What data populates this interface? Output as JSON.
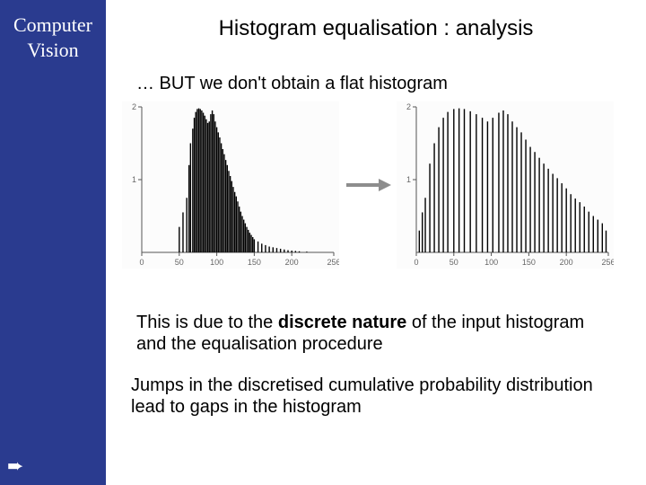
{
  "sidebar": {
    "line1": "Computer",
    "line2": "Vision",
    "bg_color": "#2a3b8f",
    "text_color": "#ffffff"
  },
  "title": "Histogram equalisation  : analysis",
  "subhead": "… BUT we don't obtain a flat histogram",
  "para1_pre": "This is due to the ",
  "para1_bold": "discrete nature",
  "para1_post": " of the input histogram and the equalisation procedure",
  "para2": "Jumps in the discretised cumulative probability distribution lead to gaps in the histogram",
  "chart_style": {
    "bar_color": "#000000",
    "axis_color": "#555555",
    "tick_label_color": "#777777",
    "background": "#fcfcfc",
    "font_size_pt": 9,
    "xlim": [
      0,
      256
    ],
    "ylim": [
      0,
      2
    ],
    "xticks": [
      0,
      50,
      100,
      150,
      200,
      256
    ],
    "yticks": [
      1,
      2
    ],
    "xtick_labels": [
      "0",
      "50",
      "100",
      "150",
      "200",
      "256"
    ],
    "ytick_labels": [
      "1",
      "2"
    ]
  },
  "chart_left": {
    "type": "histogram",
    "x": [
      50,
      55,
      60,
      63,
      65,
      68,
      70,
      72,
      74,
      76,
      78,
      80,
      82,
      84,
      86,
      88,
      90,
      92,
      94,
      96,
      98,
      100,
      102,
      104,
      106,
      108,
      110,
      112,
      114,
      116,
      118,
      120,
      122,
      124,
      126,
      128,
      130,
      132,
      134,
      136,
      138,
      140,
      142,
      144,
      146,
      148,
      150,
      155,
      160,
      165,
      170,
      175,
      180,
      185,
      190,
      195,
      200,
      205,
      210,
      220
    ],
    "y": [
      0.35,
      0.55,
      0.75,
      1.2,
      1.5,
      1.7,
      1.85,
      1.93,
      1.97,
      1.98,
      1.97,
      1.95,
      1.92,
      1.88,
      1.83,
      1.78,
      1.8,
      1.9,
      1.95,
      1.9,
      1.8,
      1.72,
      1.65,
      1.58,
      1.5,
      1.42,
      1.35,
      1.27,
      1.2,
      1.12,
      1.05,
      0.98,
      0.9,
      0.83,
      0.77,
      0.7,
      0.63,
      0.56,
      0.5,
      0.45,
      0.4,
      0.35,
      0.31,
      0.27,
      0.24,
      0.21,
      0.18,
      0.15,
      0.12,
      0.1,
      0.08,
      0.07,
      0.06,
      0.05,
      0.04,
      0.03,
      0.025,
      0.02,
      0.015,
      0.01
    ]
  },
  "chart_right": {
    "type": "histogram",
    "x": [
      4,
      8,
      12,
      18,
      24,
      30,
      36,
      42,
      50,
      57,
      64,
      72,
      80,
      88,
      95,
      102,
      110,
      116,
      122,
      128,
      134,
      140,
      146,
      152,
      158,
      164,
      170,
      176,
      182,
      188,
      194,
      200,
      206,
      212,
      218,
      224,
      230,
      236,
      242,
      248,
      253
    ],
    "y": [
      0.3,
      0.55,
      0.75,
      1.22,
      1.5,
      1.72,
      1.85,
      1.93,
      1.97,
      1.98,
      1.97,
      1.94,
      1.9,
      1.85,
      1.8,
      1.85,
      1.92,
      1.95,
      1.9,
      1.8,
      1.72,
      1.65,
      1.55,
      1.45,
      1.38,
      1.3,
      1.22,
      1.15,
      1.08,
      1.02,
      0.95,
      0.88,
      0.8,
      0.74,
      0.69,
      0.63,
      0.56,
      0.5,
      0.45,
      0.4,
      0.3
    ]
  },
  "arrow": {
    "color": "#8d8d8d",
    "stroke_width": 4
  }
}
